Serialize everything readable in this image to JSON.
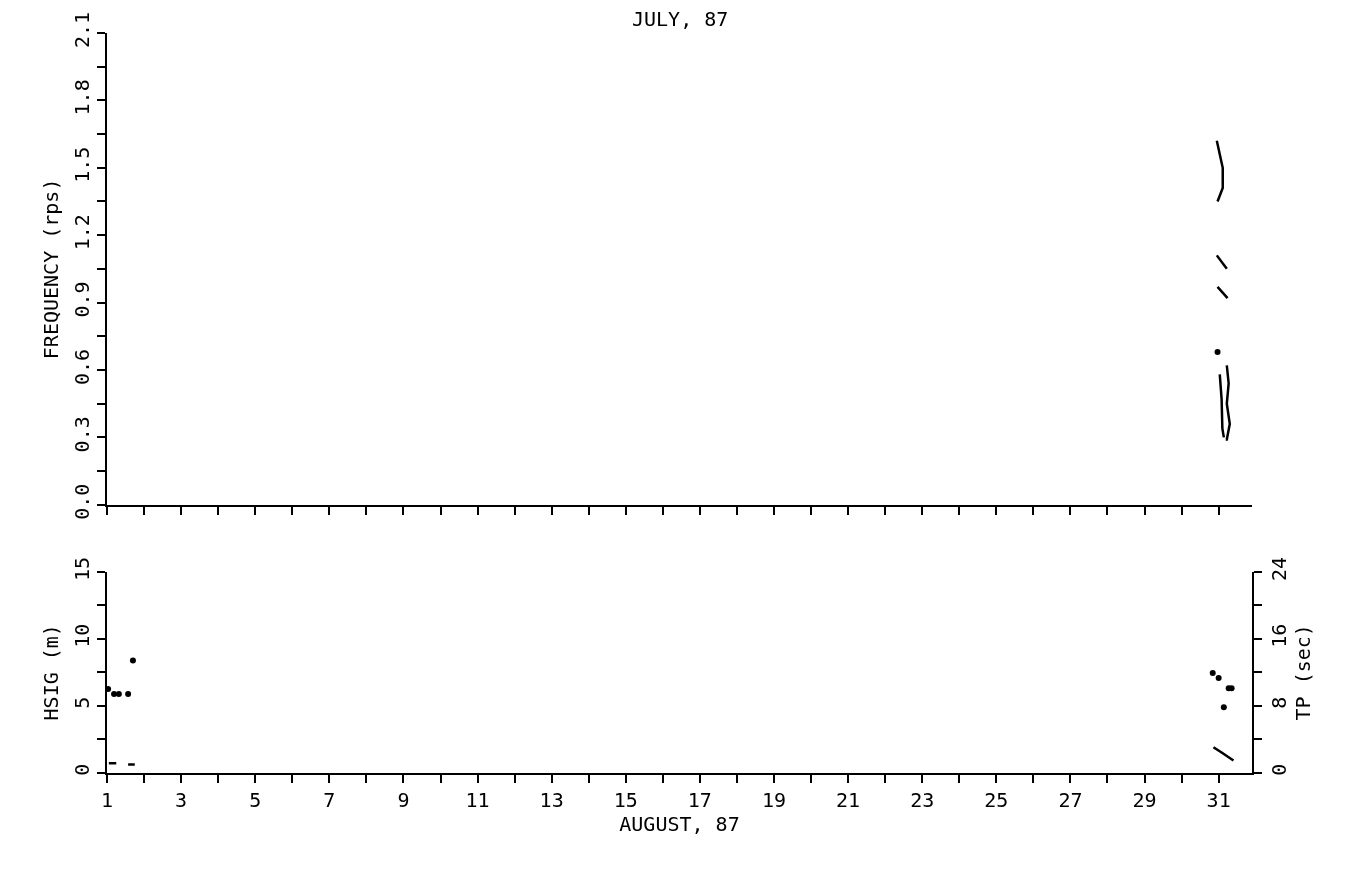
{
  "chart_data": [
    {
      "type": "line",
      "title": "JULY, 87",
      "ylabel": "FREQUENCY (rps)",
      "xlim": [
        1,
        31.9
      ],
      "ylim": [
        0,
        2.1
      ],
      "xticks": [
        {
          "value": 1,
          "label": null
        },
        {
          "value": 2,
          "label": null
        },
        {
          "value": 3,
          "label": null
        },
        {
          "value": 4,
          "label": null
        },
        {
          "value": 5,
          "label": null
        },
        {
          "value": 6,
          "label": null
        },
        {
          "value": 7,
          "label": null
        },
        {
          "value": 8,
          "label": null
        },
        {
          "value": 9,
          "label": null
        },
        {
          "value": 10,
          "label": null
        },
        {
          "value": 11,
          "label": null
        },
        {
          "value": 12,
          "label": null
        },
        {
          "value": 13,
          "label": null
        },
        {
          "value": 14,
          "label": null
        },
        {
          "value": 15,
          "label": null
        },
        {
          "value": 16,
          "label": null
        },
        {
          "value": 17,
          "label": null
        },
        {
          "value": 18,
          "label": null
        },
        {
          "value": 19,
          "label": null
        },
        {
          "value": 20,
          "label": null
        },
        {
          "value": 21,
          "label": null
        },
        {
          "value": 22,
          "label": null
        },
        {
          "value": 23,
          "label": null
        },
        {
          "value": 24,
          "label": null
        },
        {
          "value": 25,
          "label": null
        },
        {
          "value": 26,
          "label": null
        },
        {
          "value": 27,
          "label": null
        },
        {
          "value": 28,
          "label": null
        },
        {
          "value": 29,
          "label": null
        },
        {
          "value": 30,
          "label": null
        },
        {
          "value": 31,
          "label": null
        }
      ],
      "yticks": [
        {
          "value": 0,
          "label": "0.0"
        },
        {
          "value": 0.15,
          "label": null
        },
        {
          "value": 0.3,
          "label": "0.3"
        },
        {
          "value": 0.45,
          "label": null
        },
        {
          "value": 0.6,
          "label": "0.6"
        },
        {
          "value": 0.75,
          "label": null
        },
        {
          "value": 0.9,
          "label": "0.9"
        },
        {
          "value": 1.05,
          "label": null
        },
        {
          "value": 1.2,
          "label": "1.2"
        },
        {
          "value": 1.35,
          "label": null
        },
        {
          "value": 1.5,
          "label": "1.5"
        },
        {
          "value": 1.65,
          "label": null
        },
        {
          "value": 1.8,
          "label": "1.8"
        },
        {
          "value": 1.95,
          "label": null
        },
        {
          "value": 2.1,
          "label": "2.1"
        }
      ],
      "tick_labels": "y",
      "series": [
        {
          "color": "#000000",
          "marker": "none",
          "x": [
            30.95,
            31.11,
            31.11,
            30.97,
            null,
            30.95,
            31.22,
            null,
            30.97,
            31.24,
            null,
            31.22,
            31.27,
            31.22,
            31.3,
            31.22,
            31.19
          ],
          "values": [
            1.62,
            1.5,
            1.41,
            1.35,
            null,
            1.11,
            1.05,
            null,
            0.97,
            0.92,
            null,
            0.62,
            0.54,
            0.45,
            0.36,
            0.29,
            0.29
          ]
        },
        {
          "type": "scatter",
          "color": "#000000",
          "marker": "circle",
          "x": [
            30.97
          ],
          "values": [
            0.68
          ]
        },
        {
          "color": "#000000",
          "marker": "none",
          "x": [
            31.03,
            31.08,
            31.1,
            31.14
          ],
          "values": [
            0.58,
            0.47,
            0.34,
            0.3
          ]
        }
      ]
    },
    {
      "type": "line",
      "xlabel": "AUGUST, 87",
      "ylabel": "HSIG (m)",
      "y2label": "TP (sec)",
      "xlim": [
        1,
        31.9
      ],
      "ylim": [
        0,
        15
      ],
      "y2lim": [
        0,
        24
      ],
      "xticks": [
        1,
        {
          "value": 2,
          "label": null
        },
        3,
        {
          "value": 4,
          "label": null
        },
        5,
        {
          "value": 6,
          "label": null
        },
        7,
        {
          "value": 8,
          "label": null
        },
        9,
        {
          "value": 10,
          "label": null
        },
        11,
        {
          "value": 12,
          "label": null
        },
        13,
        {
          "value": 14,
          "label": null
        },
        15,
        {
          "value": 16,
          "label": null
        },
        17,
        {
          "value": 18,
          "label": null
        },
        19,
        {
          "value": 20,
          "label": null
        },
        21,
        {
          "value": 22,
          "label": null
        },
        23,
        {
          "value": 24,
          "label": null
        },
        25,
        {
          "value": 26,
          "label": null
        },
        27,
        {
          "value": 28,
          "label": null
        },
        29,
        {
          "value": 30,
          "label": null
        },
        31
      ],
      "yticks": [
        0,
        {
          "value": 2.5,
          "label": null
        },
        5,
        {
          "value": 7.5,
          "label": null
        },
        10,
        {
          "value": 12.5,
          "label": null
        },
        15
      ],
      "y2ticks": [
        0,
        {
          "value": 4,
          "label": null
        },
        8,
        {
          "value": 12,
          "label": null
        },
        16,
        {
          "value": 20,
          "label": null
        },
        24
      ],
      "series": [
        {
          "color": "#000000",
          "marker": "none",
          "x": [
            1.05,
            1.25,
            null,
            1.57,
            1.75,
            null,
            30.86,
            31.08,
            31.4
          ],
          "values": [
            0.7,
            0.7,
            null,
            0.6,
            0.6,
            null,
            1.9,
            1.5,
            0.9
          ]
        },
        {
          "type": "scatter",
          "axis": "y2",
          "color": "#000000",
          "marker": "circle",
          "x": [
            1.03,
            1.19,
            1.32,
            1.57,
            1.7,
            30.84,
            31.0,
            31.14,
            31.27,
            31.35
          ],
          "values": [
            10.0,
            9.4,
            9.4,
            9.4,
            13.4,
            11.9,
            11.3,
            7.8,
            10.1,
            10.1
          ]
        }
      ]
    }
  ]
}
